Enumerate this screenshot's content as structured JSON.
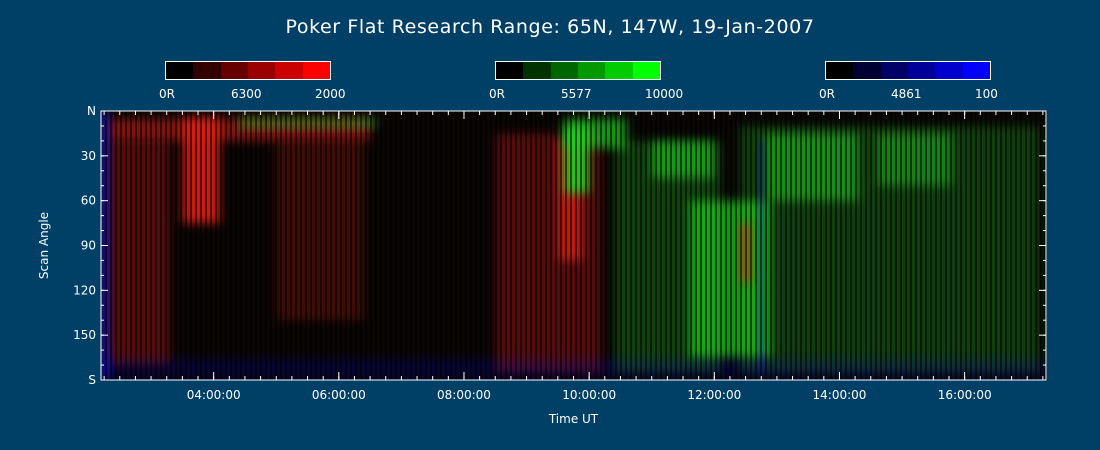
{
  "colors": {
    "background": "#003f66",
    "plot_background": "#0a0604",
    "axis": "#ffffff",
    "red_channel": "#e02010",
    "green_channel": "#20d020",
    "blue_channel": "#1010f0"
  },
  "colorbars": [
    {
      "channel": "red",
      "min_label": "0R",
      "mid_label": "6300",
      "max_label": "2000",
      "steps": [
        "#000000",
        "#330000",
        "#660000",
        "#990000",
        "#cc0000",
        "#ff0000"
      ]
    },
    {
      "channel": "green",
      "min_label": "0R",
      "mid_label": "5577",
      "max_label": "10000",
      "steps": [
        "#000000",
        "#003300",
        "#006600",
        "#009900",
        "#00cc00",
        "#00ff00"
      ]
    },
    {
      "channel": "blue",
      "min_label": "0R",
      "mid_label": "4861",
      "max_label": "100",
      "steps": [
        "#000000",
        "#000033",
        "#000066",
        "#000099",
        "#0000cc",
        "#0000ff"
      ]
    }
  ],
  "chart_data": {
    "type": "heatmap",
    "title": "Poker Flat Research Range: 65N, 147W, 19-Jan-2007",
    "xlabel": "Time UT",
    "ylabel": "Scan Angle",
    "x_range_hours": [
      2.2,
      17.3
    ],
    "x_ticks": [
      {
        "value": 4,
        "label": "04:00:00"
      },
      {
        "value": 6,
        "label": "06:00:00"
      },
      {
        "value": 8,
        "label": "08:00:00"
      },
      {
        "value": 10,
        "label": "10:00:00"
      },
      {
        "value": 12,
        "label": "12:00:00"
      },
      {
        "value": 14,
        "label": "14:00:00"
      },
      {
        "value": 16,
        "label": "16:00:00"
      }
    ],
    "y_range": [
      0,
      180
    ],
    "y_ticks": [
      {
        "value": 0,
        "label": "N"
      },
      {
        "value": 30,
        "label": "30"
      },
      {
        "value": 60,
        "label": "60"
      },
      {
        "value": 90,
        "label": "90"
      },
      {
        "value": 120,
        "label": "120"
      },
      {
        "value": 150,
        "label": "150"
      },
      {
        "value": 180,
        "label": "S"
      }
    ],
    "features": [
      {
        "channel": "red",
        "t_start": 2.3,
        "t_end": 6.5,
        "angle_start": 5,
        "angle_end": 20,
        "intensity": 0.55
      },
      {
        "channel": "red",
        "t_start": 3.5,
        "t_end": 4.1,
        "angle_start": 5,
        "angle_end": 75,
        "intensity": 0.9
      },
      {
        "channel": "red",
        "t_start": 2.3,
        "t_end": 3.3,
        "angle_start": 20,
        "angle_end": 170,
        "intensity": 0.35
      },
      {
        "channel": "red",
        "t_start": 5.0,
        "t_end": 6.4,
        "angle_start": 20,
        "angle_end": 140,
        "intensity": 0.25
      },
      {
        "channel": "green",
        "t_start": 4.4,
        "t_end": 6.6,
        "angle_start": 4,
        "angle_end": 12,
        "intensity": 0.45
      },
      {
        "channel": "red",
        "t_start": 8.5,
        "t_end": 10.2,
        "angle_start": 15,
        "angle_end": 175,
        "intensity": 0.35
      },
      {
        "channel": "red",
        "t_start": 9.5,
        "t_end": 9.9,
        "angle_start": 20,
        "angle_end": 100,
        "intensity": 0.75
      },
      {
        "channel": "green",
        "t_start": 9.6,
        "t_end": 10.6,
        "angle_start": 5,
        "angle_end": 25,
        "intensity": 0.7
      },
      {
        "channel": "green",
        "t_start": 9.6,
        "t_end": 10.0,
        "angle_start": 10,
        "angle_end": 55,
        "intensity": 0.9
      },
      {
        "channel": "green",
        "t_start": 10.4,
        "t_end": 12.1,
        "angle_start": 20,
        "angle_end": 175,
        "intensity": 0.3
      },
      {
        "channel": "green",
        "t_start": 11.6,
        "t_end": 12.9,
        "angle_start": 60,
        "angle_end": 165,
        "intensity": 0.7
      },
      {
        "channel": "green",
        "t_start": 11.0,
        "t_end": 12.0,
        "angle_start": 20,
        "angle_end": 45,
        "intensity": 0.6
      },
      {
        "channel": "green",
        "t_start": 12.8,
        "t_end": 14.3,
        "angle_start": 15,
        "angle_end": 60,
        "intensity": 0.55
      },
      {
        "channel": "green",
        "t_start": 12.4,
        "t_end": 17.2,
        "angle_start": 10,
        "angle_end": 175,
        "intensity": 0.28
      },
      {
        "channel": "green",
        "t_start": 14.6,
        "t_end": 15.8,
        "angle_start": 15,
        "angle_end": 50,
        "intensity": 0.45
      },
      {
        "channel": "red",
        "t_start": 12.4,
        "t_end": 12.6,
        "angle_start": 75,
        "angle_end": 115,
        "intensity": 0.6
      },
      {
        "channel": "blue",
        "t_start": 12.7,
        "t_end": 12.8,
        "angle_start": 20,
        "angle_end": 175,
        "intensity": 0.45
      },
      {
        "channel": "blue",
        "t_start": 2.2,
        "t_end": 2.35,
        "angle_start": 0,
        "angle_end": 180,
        "intensity": 0.7
      },
      {
        "channel": "blue",
        "t_start": 2.2,
        "t_end": 17.3,
        "angle_start": 165,
        "angle_end": 180,
        "intensity": 0.2
      }
    ]
  }
}
